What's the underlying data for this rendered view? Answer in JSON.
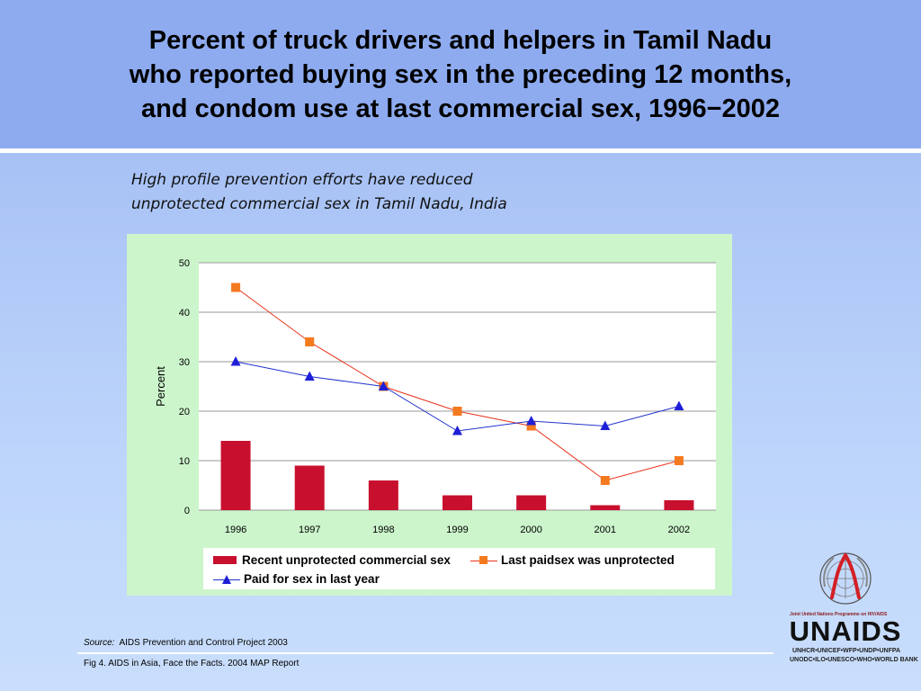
{
  "header": {
    "title_lines": [
      "Percent of truck drivers and helpers in Tamil Nadu",
      "who reported buying sex in the preceding 12 months,",
      "and condom use at last commercial sex, 1996−2002"
    ]
  },
  "subtitle_lines": [
    "High profile prevention efforts have reduced",
    "unprotected commercial sex in Tamil Nadu, India"
  ],
  "colors": {
    "bar": "#c8102e",
    "line_unprotected": "#e8331b",
    "marker_unprotected": "#f47a20",
    "line_paid": "#2233cc",
    "marker_paid": "#1f1fd8",
    "panel": "#ccf5cc",
    "header": "#8eabf0"
  },
  "chart_data": {
    "type": "bar",
    "categories": [
      "1996",
      "1997",
      "1998",
      "1999",
      "2000",
      "2001",
      "2002"
    ],
    "ylabel": "Percent",
    "xlabel": "",
    "ylim": [
      0,
      50
    ],
    "yticks": [
      0,
      10,
      20,
      30,
      40,
      50
    ],
    "grid": true,
    "legend_position": "bottom",
    "series": [
      {
        "name": "Recent unprotected commercial sex",
        "kind": "bar",
        "values": [
          14,
          9,
          6,
          3,
          3,
          1,
          2
        ]
      },
      {
        "name": "Last paidsex was unprotected",
        "kind": "line",
        "marker": "square",
        "values": [
          45,
          34,
          25,
          20,
          17,
          6,
          10
        ]
      },
      {
        "name": "Paid for sex in last year",
        "kind": "line",
        "marker": "triangle",
        "values": [
          30,
          27,
          25,
          16,
          18,
          17,
          21
        ]
      }
    ]
  },
  "footer": {
    "source_label": "Source:",
    "source_text": "AIDS Prevention and Control Project 2003",
    "caption": "Fig 4. AIDS in Asia, Face the Facts.  2004 MAP Report"
  },
  "logo": {
    "top_text": "Joint United Nations Programme on HIV/AIDS",
    "wordmark": "UNAIDS",
    "line1": "UNHCR•UNICEF•WFP•UNDP•UNFPA",
    "line2": "UNODC•ILO•UNESCO•WHO•WORLD BANK"
  }
}
